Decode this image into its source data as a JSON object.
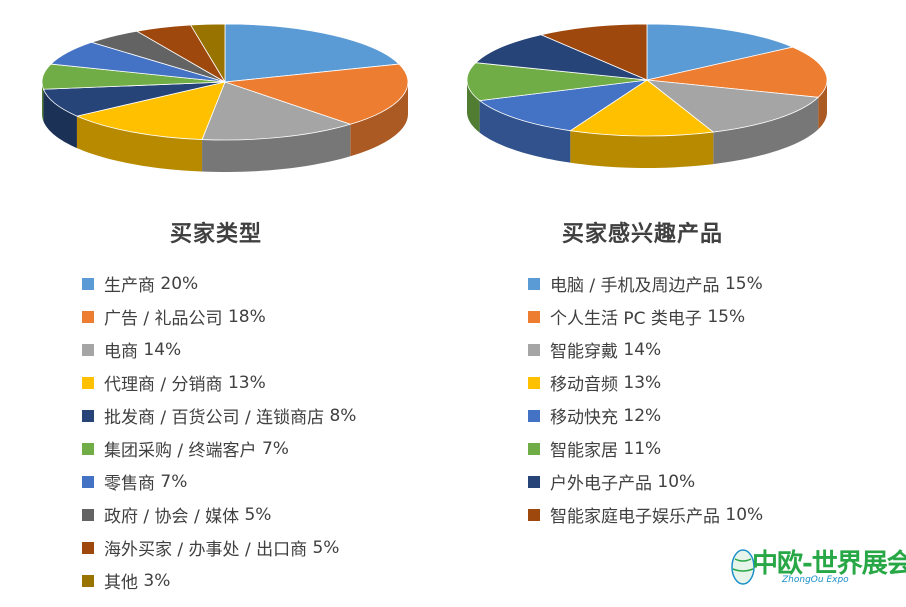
{
  "chart_data": [
    {
      "type": "pie",
      "title": "买家类型",
      "legend_position": "bottom",
      "labels": [
        "生产商",
        "广告 / 礼品公司",
        "电商",
        "代理商 / 分销商",
        "批发商 / 百货公司 / 连锁商店",
        "集团采购 / 终端客户",
        "零售商",
        "政府 / 协会 / 媒体",
        "海外买家 / 办事处 / 出口商",
        "其他"
      ],
      "values": [
        20,
        18,
        14,
        13,
        8,
        7,
        7,
        5,
        5,
        3
      ],
      "colors": [
        "#5b9bd5",
        "#ed7d31",
        "#a5a5a5",
        "#ffc000",
        "#264478",
        "#70ad47",
        "#4472c4",
        "#636363",
        "#9e480e",
        "#997300"
      ]
    },
    {
      "type": "pie",
      "title": "买家感兴趣产品",
      "legend_position": "bottom",
      "labels": [
        "电脑 / 手机及周边产品",
        "个人生活 PC 类电子",
        "智能穿戴",
        "移动音频",
        "移动快充",
        "智能家居",
        "户外电子产品",
        "智能家庭电子娱乐产品"
      ],
      "values": [
        15,
        15,
        14,
        13,
        12,
        11,
        10,
        10
      ],
      "colors": [
        "#5b9bd5",
        "#ed7d31",
        "#a5a5a5",
        "#ffc000",
        "#4472c4",
        "#70ad47",
        "#264478",
        "#9e480e"
      ]
    }
  ],
  "logo": {
    "main": "中欧-世界展会",
    "sub": "ZhongOu Expo",
    "colors": {
      "green": "#27a745",
      "blue": "#1a8fc9"
    },
    "icon": "globe-icon"
  }
}
